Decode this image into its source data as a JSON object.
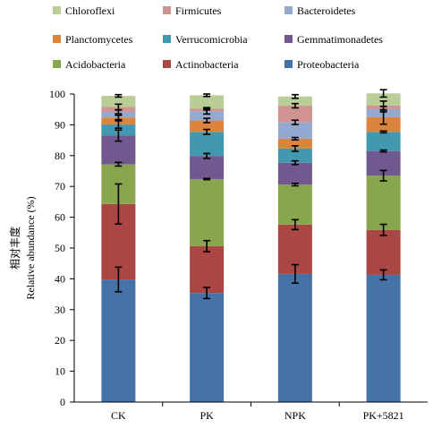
{
  "chart_data": {
    "type": "bar",
    "stacked": true,
    "categories": [
      "CK",
      "PK",
      "NPK",
      "PK+5821"
    ],
    "ylabel_cn": "相对丰度",
    "ylabel": "Relative abundance (%)",
    "ylim": [
      0,
      100
    ],
    "yticks": [
      0,
      10,
      20,
      30,
      40,
      50,
      60,
      70,
      80,
      90,
      100
    ],
    "grid": false,
    "legend_position": "top",
    "series": [
      {
        "name": "Proteobacteria",
        "color": "#4572A7",
        "values": [
          39.8,
          35.4,
          41.6,
          41.3
        ],
        "errors": [
          4.0,
          1.8,
          3.0,
          1.6
        ]
      },
      {
        "name": "Actinobacteria",
        "color": "#AA4643",
        "values": [
          24.5,
          15.2,
          16.0,
          14.6
        ],
        "errors": [
          6.5,
          1.8,
          1.6,
          1.8
        ]
      },
      {
        "name": "Acidobacteria",
        "color": "#89A54E",
        "values": [
          12.9,
          21.8,
          13.0,
          17.6
        ],
        "errors": [
          0.6,
          0.2,
          0.4,
          1.7
        ]
      },
      {
        "name": "Gemmatimonadetes",
        "color": "#71588F",
        "values": [
          9.3,
          7.5,
          7.1,
          8.0
        ],
        "errors": [
          1.8,
          0.8,
          0.6,
          0.3
        ]
      },
      {
        "name": "Verrucomicrobia",
        "color": "#4198AF",
        "values": [
          3.6,
          7.8,
          4.6,
          6.2
        ],
        "errors": [
          1.2,
          0.8,
          0.9,
          0.3
        ]
      },
      {
        "name": "Planctomycetes",
        "color": "#DB843D",
        "values": [
          2.3,
          3.7,
          3.2,
          4.8
        ],
        "errors": [
          0.7,
          0.7,
          0.4,
          2.3
        ]
      },
      {
        "name": "Bacteroidetes",
        "color": "#93A9CF",
        "values": [
          1.8,
          3.0,
          5.3,
          2.6
        ],
        "errors": [
          0.6,
          0.9,
          0.7,
          0.9
        ]
      },
      {
        "name": "Firmicutes",
        "color": "#D19392",
        "values": [
          1.6,
          0.8,
          5.4,
          1.2
        ],
        "errors": [
          0.9,
          0.4,
          0.7,
          1.4
        ]
      },
      {
        "name": "Chloroflexi",
        "color": "#B9CD96",
        "values": [
          3.6,
          4.4,
          3.0,
          3.9
        ],
        "errors": [
          0.4,
          0.4,
          0.6,
          1.2
        ]
      }
    ],
    "legend_order": [
      "Chloroflexi",
      "Firmicutes",
      "Bacteroidetes",
      "Planctomycetes",
      "Verrucomicrobia",
      "Gemmatimonadetes",
      "Acidobacteria",
      "Actinobacteria",
      "Proteobacteria"
    ]
  }
}
